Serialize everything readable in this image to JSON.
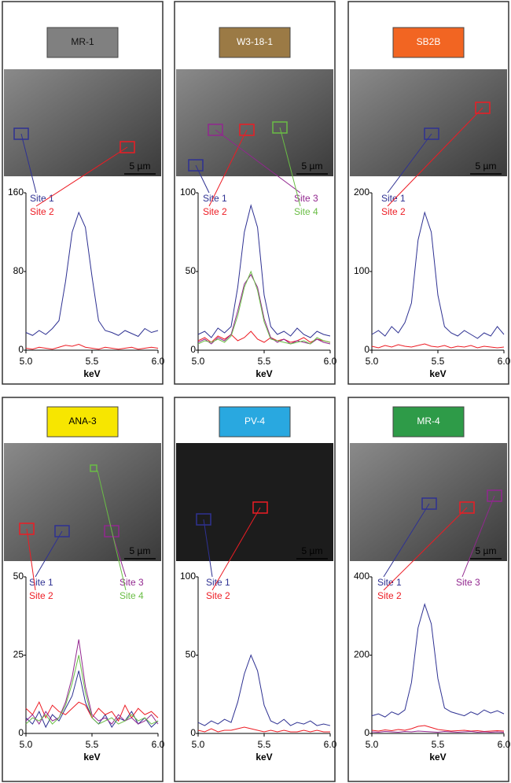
{
  "chart_data": [
    {
      "type": "line",
      "title": "MR-1",
      "title_color": "#808080",
      "scale_bar": "5 µm",
      "xlabel": "keV",
      "x": [
        5.0,
        5.05,
        5.1,
        5.15,
        5.2,
        5.25,
        5.3,
        5.35,
        5.4,
        5.45,
        5.5,
        5.55,
        5.6,
        5.65,
        5.7,
        5.75,
        5.8,
        5.85,
        5.9,
        5.95,
        6.0
      ],
      "xlim": [
        5,
        6
      ],
      "xticks": [
        {
          "value": 5,
          "label": "5.0"
        },
        5.5,
        {
          "value": 6,
          "label": "6.0"
        }
      ],
      "ylim": [
        0,
        160
      ],
      "yticks": [
        0,
        80,
        160
      ],
      "series": [
        {
          "name": "Site 1",
          "color": "#2e3192",
          "values": [
            18,
            15,
            20,
            16,
            22,
            30,
            70,
            120,
            140,
            125,
            75,
            30,
            20,
            18,
            15,
            20,
            17,
            14,
            22,
            18,
            20
          ]
        },
        {
          "name": "Site 2",
          "color": "#ed1c24",
          "values": [
            2,
            1,
            3,
            2,
            1,
            3,
            5,
            4,
            6,
            3,
            2,
            1,
            3,
            2,
            1,
            2,
            3,
            1,
            2,
            3,
            2
          ]
        }
      ]
    },
    {
      "type": "line",
      "title": "W3-18-1",
      "title_color": "#9b7a45",
      "scale_bar": "5 µm",
      "xlabel": "keV",
      "x": [
        5.0,
        5.05,
        5.1,
        5.15,
        5.2,
        5.25,
        5.3,
        5.35,
        5.4,
        5.45,
        5.5,
        5.55,
        5.6,
        5.65,
        5.7,
        5.75,
        5.8,
        5.85,
        5.9,
        5.95,
        6.0
      ],
      "xlim": [
        5,
        6
      ],
      "xticks": [
        {
          "value": 5,
          "label": "5.0"
        },
        5.5,
        {
          "value": 6,
          "label": "6.0"
        }
      ],
      "ylim": [
        0,
        100
      ],
      "yticks": [
        0,
        50,
        100
      ],
      "series": [
        {
          "name": "Site 1",
          "color": "#2e3192",
          "values": [
            10,
            12,
            8,
            14,
            11,
            15,
            40,
            75,
            92,
            78,
            35,
            15,
            10,
            12,
            9,
            14,
            10,
            8,
            12,
            10,
            9
          ]
        },
        {
          "name": "Site 2",
          "color": "#ed1c24",
          "values": [
            6,
            8,
            5,
            9,
            7,
            10,
            6,
            8,
            12,
            7,
            5,
            8,
            6,
            7,
            5,
            6,
            8,
            5,
            7,
            6,
            5
          ]
        },
        {
          "name": "Site 3",
          "color": "#92278f",
          "values": [
            5,
            7,
            4,
            8,
            6,
            10,
            25,
            42,
            48,
            40,
            20,
            8,
            5,
            7,
            4,
            6,
            5,
            4,
            7,
            5,
            4
          ]
        },
        {
          "name": "Site 4",
          "color": "#6abd45",
          "values": [
            4,
            6,
            5,
            7,
            5,
            9,
            22,
            40,
            50,
            38,
            18,
            7,
            6,
            5,
            4,
            5,
            6,
            4,
            8,
            6,
            5
          ]
        }
      ]
    },
    {
      "type": "line",
      "title": "SB2B",
      "title_color": "#f26522",
      "scale_bar": "5 µm",
      "xlabel": "keV",
      "x": [
        5.0,
        5.05,
        5.1,
        5.15,
        5.2,
        5.25,
        5.3,
        5.35,
        5.4,
        5.45,
        5.5,
        5.55,
        5.6,
        5.65,
        5.7,
        5.75,
        5.8,
        5.85,
        5.9,
        5.95,
        6.0
      ],
      "xlim": [
        5,
        6
      ],
      "xticks": [
        {
          "value": 5,
          "label": "5.0"
        },
        5.5,
        {
          "value": 6,
          "label": "6.0"
        }
      ],
      "ylim": [
        0,
        200
      ],
      "yticks": [
        0,
        100,
        200
      ],
      "series": [
        {
          "name": "Site 1",
          "color": "#2e3192",
          "values": [
            20,
            25,
            18,
            30,
            22,
            35,
            60,
            140,
            175,
            150,
            70,
            30,
            22,
            18,
            25,
            20,
            15,
            22,
            18,
            30,
            20
          ]
        },
        {
          "name": "Site 2",
          "color": "#ed1c24",
          "values": [
            5,
            3,
            6,
            4,
            7,
            5,
            4,
            6,
            8,
            5,
            4,
            6,
            3,
            5,
            4,
            6,
            3,
            5,
            4,
            3,
            4
          ]
        }
      ]
    },
    {
      "type": "line",
      "title": "ANA-3",
      "title_color": "#f7e600",
      "scale_bar": "5 µm",
      "xlabel": "keV",
      "x": [
        5.0,
        5.05,
        5.1,
        5.15,
        5.2,
        5.25,
        5.3,
        5.35,
        5.4,
        5.45,
        5.5,
        5.55,
        5.6,
        5.65,
        5.7,
        5.75,
        5.8,
        5.85,
        5.9,
        5.95,
        6.0
      ],
      "xlim": [
        5,
        6
      ],
      "xticks": [
        {
          "value": 5,
          "label": "5.0"
        },
        5.5,
        {
          "value": 6,
          "label": "6.0"
        }
      ],
      "ylim": [
        0,
        50
      ],
      "yticks": [
        0,
        25,
        50
      ],
      "series": [
        {
          "name": "Site 1",
          "color": "#2e3192",
          "values": [
            5,
            3,
            7,
            2,
            6,
            4,
            8,
            12,
            20,
            10,
            5,
            3,
            6,
            2,
            5,
            4,
            7,
            3,
            5,
            2,
            4
          ]
        },
        {
          "name": "Site 2",
          "color": "#ed1c24",
          "values": [
            8,
            6,
            10,
            5,
            9,
            7,
            6,
            8,
            10,
            9,
            5,
            8,
            6,
            7,
            4,
            9,
            5,
            8,
            6,
            7,
            5
          ]
        },
        {
          "name": "Site 3",
          "color": "#92278f",
          "values": [
            4,
            6,
            3,
            7,
            4,
            5,
            10,
            18,
            30,
            15,
            6,
            4,
            5,
            3,
            6,
            4,
            5,
            3,
            4,
            6,
            3
          ]
        },
        {
          "name": "Site 4",
          "color": "#6abd45",
          "values": [
            3,
            5,
            4,
            6,
            3,
            5,
            9,
            16,
            25,
            13,
            5,
            3,
            4,
            5,
            3,
            4,
            6,
            4,
            5,
            3,
            4
          ]
        }
      ]
    },
    {
      "type": "line",
      "title": "PV-4",
      "title_color": "#29a8e0",
      "scale_bar": "5 µm",
      "xlabel": "keV",
      "x": [
        5.0,
        5.05,
        5.1,
        5.15,
        5.2,
        5.25,
        5.3,
        5.35,
        5.4,
        5.45,
        5.5,
        5.55,
        5.6,
        5.65,
        5.7,
        5.75,
        5.8,
        5.85,
        5.9,
        5.95,
        6.0
      ],
      "xlim": [
        5,
        6
      ],
      "xticks": [
        {
          "value": 5,
          "label": "5.0"
        },
        5.5,
        {
          "value": 6,
          "label": "6.0"
        }
      ],
      "ylim": [
        0,
        100
      ],
      "yticks": [
        0,
        50,
        100
      ],
      "series": [
        {
          "name": "Site 1",
          "color": "#2e3192",
          "values": [
            7,
            5,
            8,
            6,
            9,
            7,
            20,
            38,
            50,
            40,
            18,
            8,
            6,
            9,
            5,
            7,
            6,
            8,
            5,
            6,
            5
          ]
        },
        {
          "name": "Site 2",
          "color": "#ed1c24",
          "values": [
            2,
            1,
            3,
            1,
            2,
            2,
            3,
            4,
            3,
            2,
            1,
            2,
            1,
            2,
            1,
            1,
            2,
            1,
            2,
            1,
            1
          ]
        }
      ]
    },
    {
      "type": "line",
      "title": "MR-4",
      "title_color": "#2e9b48",
      "scale_bar": "5 µm",
      "xlabel": "keV",
      "x": [
        5.0,
        5.05,
        5.1,
        5.15,
        5.2,
        5.25,
        5.3,
        5.35,
        5.4,
        5.45,
        5.5,
        5.55,
        5.6,
        5.65,
        5.7,
        5.75,
        5.8,
        5.85,
        5.9,
        5.95,
        6.0
      ],
      "xlim": [
        5,
        6
      ],
      "xticks": [
        {
          "value": 5,
          "label": "5.0"
        },
        5.5,
        {
          "value": 6,
          "label": "6.0"
        }
      ],
      "ylim": [
        0,
        400
      ],
      "yticks": [
        0,
        200,
        400
      ],
      "series": [
        {
          "name": "Site 1",
          "color": "#2e3192",
          "values": [
            45,
            50,
            42,
            55,
            48,
            60,
            130,
            270,
            330,
            280,
            140,
            65,
            55,
            50,
            45,
            55,
            48,
            60,
            52,
            58,
            50
          ]
        },
        {
          "name": "Site 2",
          "color": "#ed1c24",
          "values": [
            8,
            6,
            9,
            7,
            10,
            8,
            12,
            18,
            20,
            15,
            10,
            8,
            6,
            7,
            8,
            6,
            7,
            5,
            6,
            7,
            6
          ]
        },
        {
          "name": "Site 3",
          "color": "#92278f",
          "values": [
            4,
            3,
            5,
            4,
            3,
            5,
            4,
            6,
            5,
            4,
            3,
            5,
            4,
            3,
            4,
            5,
            3,
            4,
            3,
            4,
            3
          ]
        }
      ]
    }
  ]
}
